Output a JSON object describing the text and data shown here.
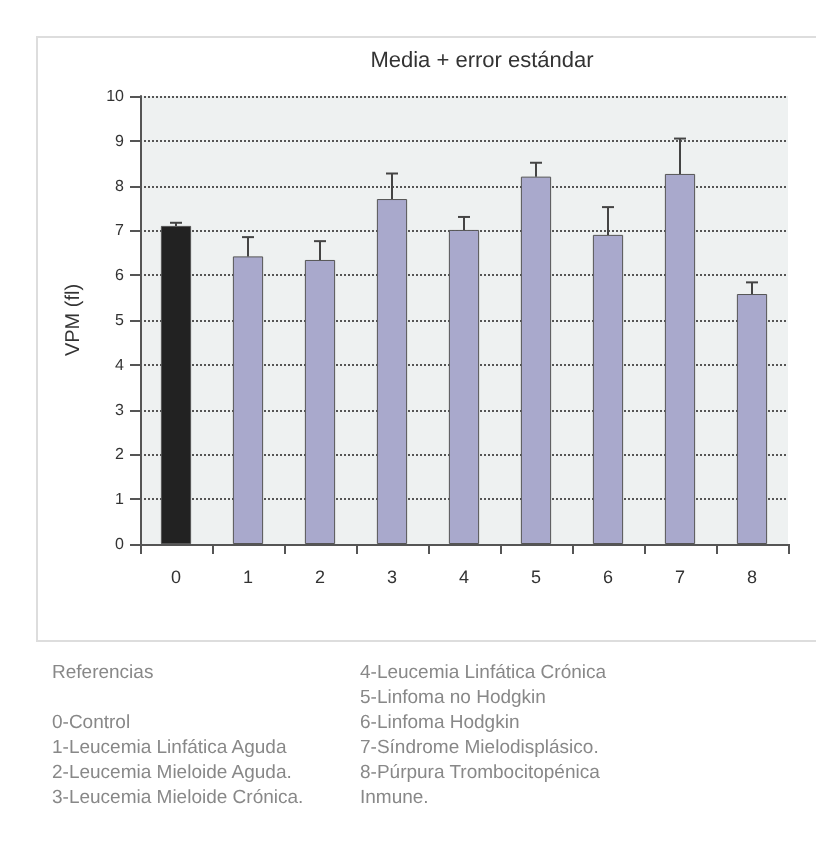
{
  "chart_data": {
    "type": "bar",
    "title": "Media + error estándar",
    "ylabel": "VPM (fl)",
    "categories": [
      "0",
      "1",
      "2",
      "3",
      "4",
      "5",
      "6",
      "7",
      "8"
    ],
    "values": [
      7.1,
      6.42,
      6.34,
      7.7,
      7.01,
      8.2,
      6.9,
      8.26,
      5.58
    ],
    "colors": [
      "#222222",
      "#a9a9cc",
      "#a9a9cc",
      "#a9a9cc",
      "#a9a9cc",
      "#a9a9cc",
      "#a9a9cc",
      "#a9a9cc",
      "#a9a9cc"
    ],
    "errors": [
      [
        7.1,
        7.17
      ],
      [
        6.42,
        6.85
      ],
      [
        6.34,
        6.76
      ],
      [
        7.7,
        8.27
      ],
      [
        7.01,
        7.3
      ],
      [
        8.2,
        8.51
      ],
      [
        6.9,
        7.52
      ],
      [
        8.26,
        9.05
      ],
      [
        5.58,
        5.84
      ]
    ],
    "ylim": [
      0,
      10
    ],
    "yticks": [
      0,
      1,
      2,
      3,
      4,
      5,
      6,
      7,
      8,
      9,
      10
    ],
    "grid": "y",
    "annotations": [
      "Referencias",
      "0-Control",
      "1-Leucemia Linfática Aguda",
      "2-Leucemia Mieloide Aguda.",
      "3-Leucemia Mieloide Crónica.",
      "4-Leucemia Linfática Crónica",
      "5-Linfoma no Hodgkin",
      "6-Linfoma Hodgkin",
      "7-Síndrome Mielodisplásico.",
      "8-Púrpura Trombocitopénica Inmune."
    ]
  }
}
